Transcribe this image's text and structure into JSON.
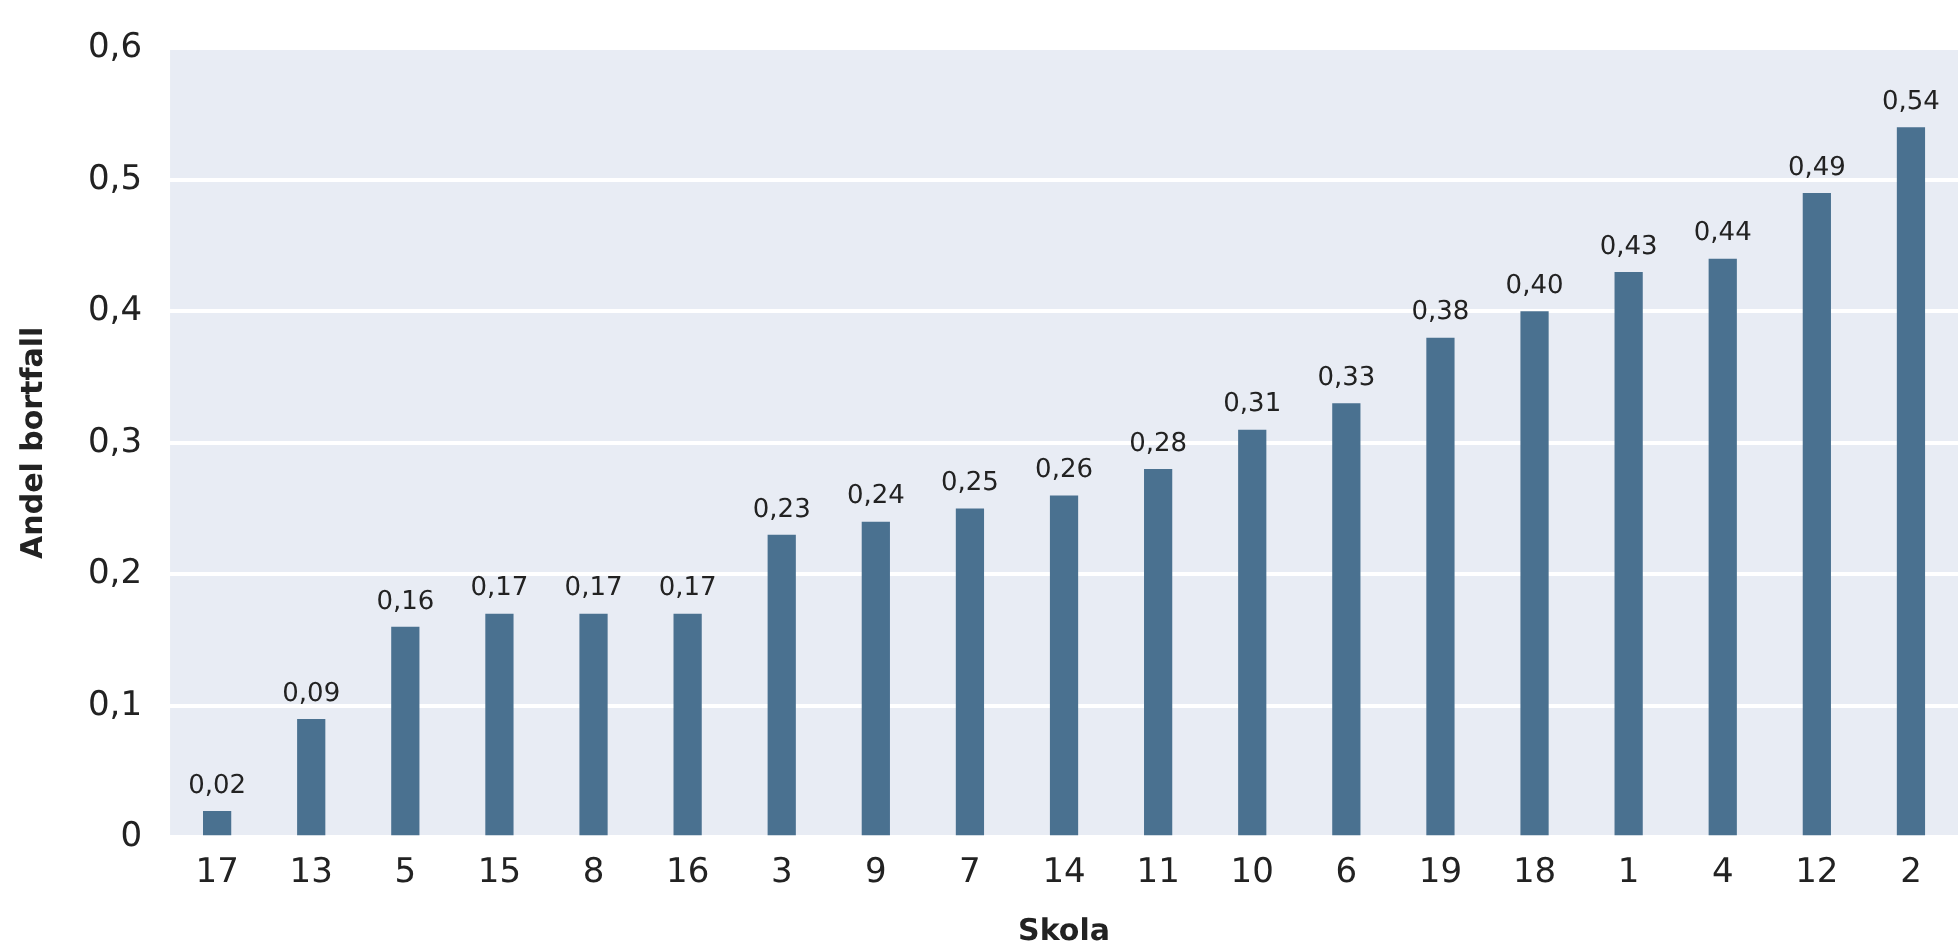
{
  "chart_data": {
    "type": "bar",
    "xlabel": "Skola",
    "ylabel": "Andel bortfall",
    "categories": [
      "17",
      "13",
      "5",
      "15",
      "8",
      "16",
      "3",
      "9",
      "7",
      "14",
      "11",
      "10",
      "6",
      "19",
      "18",
      "1",
      "4",
      "12",
      "2"
    ],
    "values": [
      0.02,
      0.09,
      0.16,
      0.17,
      0.17,
      0.17,
      0.23,
      0.24,
      0.25,
      0.26,
      0.28,
      0.31,
      0.33,
      0.38,
      0.4,
      0.43,
      0.44,
      0.49,
      0.54
    ],
    "value_labels": [
      "0,02",
      "0,09",
      "0,16",
      "0,17",
      "0,17",
      "0,17",
      "0,23",
      "0,24",
      "0,25",
      "0,26",
      "0,28",
      "0,31",
      "0,33",
      "0,38",
      "0,40",
      "0,43",
      "0,44",
      "0,49",
      "0,54"
    ],
    "color": "#4a7190",
    "ylim": [
      0,
      0.6
    ],
    "yticks": [
      0,
      {
        "value": 0.1,
        "label": "0,1"
      },
      {
        "value": 0.2,
        "label": "0,2"
      },
      {
        "value": 0.3,
        "label": "0,3"
      },
      {
        "value": 0.4,
        "label": "0,4"
      },
      {
        "value": 0.5,
        "label": "0,5"
      },
      {
        "value": 0.6,
        "label": "0,6"
      }
    ],
    "grid": "y",
    "legend": false
  }
}
